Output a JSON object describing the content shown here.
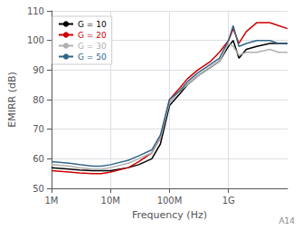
{
  "chart_data": {
    "type": "line",
    "xlabel": "Frequency (Hz)",
    "ylabel": "EMIRR (dB)",
    "log": "x",
    "xlim": [
      1000000.0,
      10000000000.0
    ],
    "ylim": [
      50,
      110
    ],
    "yticks": [
      50,
      60,
      70,
      80,
      90,
      100,
      110
    ],
    "xticks": [
      {
        "value": 1000000.0,
        "label": "1M"
      },
      {
        "value": 10000000.0,
        "label": "10M"
      },
      {
        "value": 100000000.0,
        "label": "100M"
      },
      {
        "value": 1000000000.0,
        "label": "1G"
      }
    ],
    "grid": true,
    "legend": "upper left",
    "annotation": "A14",
    "series": [
      {
        "name": "G = 10",
        "color": "#000000",
        "x": [
          1000000.0,
          2000000.0,
          3000000.0,
          5000000.0,
          7000000.0,
          10000000.0,
          20000000.0,
          30000000.0,
          50000000.0,
          70000000.0,
          100000000.0,
          150000000.0,
          200000000.0,
          300000000.0,
          500000000.0,
          700000000.0,
          1000000000.0,
          1200000000.0,
          1500000000.0,
          2000000000.0,
          3000000000.0,
          5000000000.0,
          7000000000.0,
          10000000000.0
        ],
        "values": [
          57,
          56.5,
          56.2,
          56,
          56,
          56,
          57,
          58,
          60,
          65,
          78,
          82,
          85,
          88,
          91,
          93,
          98,
          100,
          94,
          97,
          98,
          99,
          99,
          99
        ]
      },
      {
        "name": "G = 20",
        "color": "#cc0000",
        "x": [
          1000000.0,
          2000000.0,
          3000000.0,
          5000000.0,
          7000000.0,
          10000000.0,
          20000000.0,
          30000000.0,
          50000000.0,
          70000000.0,
          100000000.0,
          150000000.0,
          200000000.0,
          300000000.0,
          500000000.0,
          700000000.0,
          1000000000.0,
          1200000000.0,
          1500000000.0,
          2000000000.0,
          3000000000.0,
          5000000000.0,
          7000000000.0,
          10000000000.0
        ],
        "values": [
          56,
          55.5,
          55.2,
          55,
          55,
          55.5,
          57,
          59,
          62,
          67,
          80,
          84,
          87,
          90,
          93,
          96,
          100,
          104,
          99,
          103,
          106,
          106,
          105,
          104
        ]
      },
      {
        "name": "G = 30",
        "color": "#b0b0b0",
        "x": [
          1000000.0,
          2000000.0,
          3000000.0,
          5000000.0,
          7000000.0,
          10000000.0,
          20000000.0,
          30000000.0,
          50000000.0,
          70000000.0,
          100000000.0,
          150000000.0,
          200000000.0,
          300000000.0,
          500000000.0,
          700000000.0,
          1000000000.0,
          1200000000.0,
          1500000000.0,
          2000000000.0,
          3000000000.0,
          5000000000.0,
          7000000000.0,
          10000000000.0
        ],
        "values": [
          58,
          57.5,
          57,
          56.5,
          56.5,
          57,
          58.5,
          60,
          62,
          67,
          79,
          83,
          85,
          88,
          91,
          93,
          99,
          98,
          95,
          96,
          96,
          97,
          96,
          96
        ]
      },
      {
        "name": "G = 50",
        "color": "#336688",
        "x": [
          1000000.0,
          2000000.0,
          3000000.0,
          5000000.0,
          7000000.0,
          10000000.0,
          20000000.0,
          30000000.0,
          50000000.0,
          70000000.0,
          100000000.0,
          150000000.0,
          200000000.0,
          300000000.0,
          500000000.0,
          700000000.0,
          1000000000.0,
          1200000000.0,
          1500000000.0,
          2000000000.0,
          3000000000.0,
          5000000000.0,
          7000000000.0,
          10000000000.0
        ],
        "values": [
          59,
          58.5,
          58,
          57.5,
          57.5,
          58,
          59.5,
          61,
          63,
          68,
          80,
          83,
          86,
          89,
          92,
          94,
          100,
          105,
          98,
          99,
          100,
          100,
          99,
          99
        ]
      }
    ]
  }
}
